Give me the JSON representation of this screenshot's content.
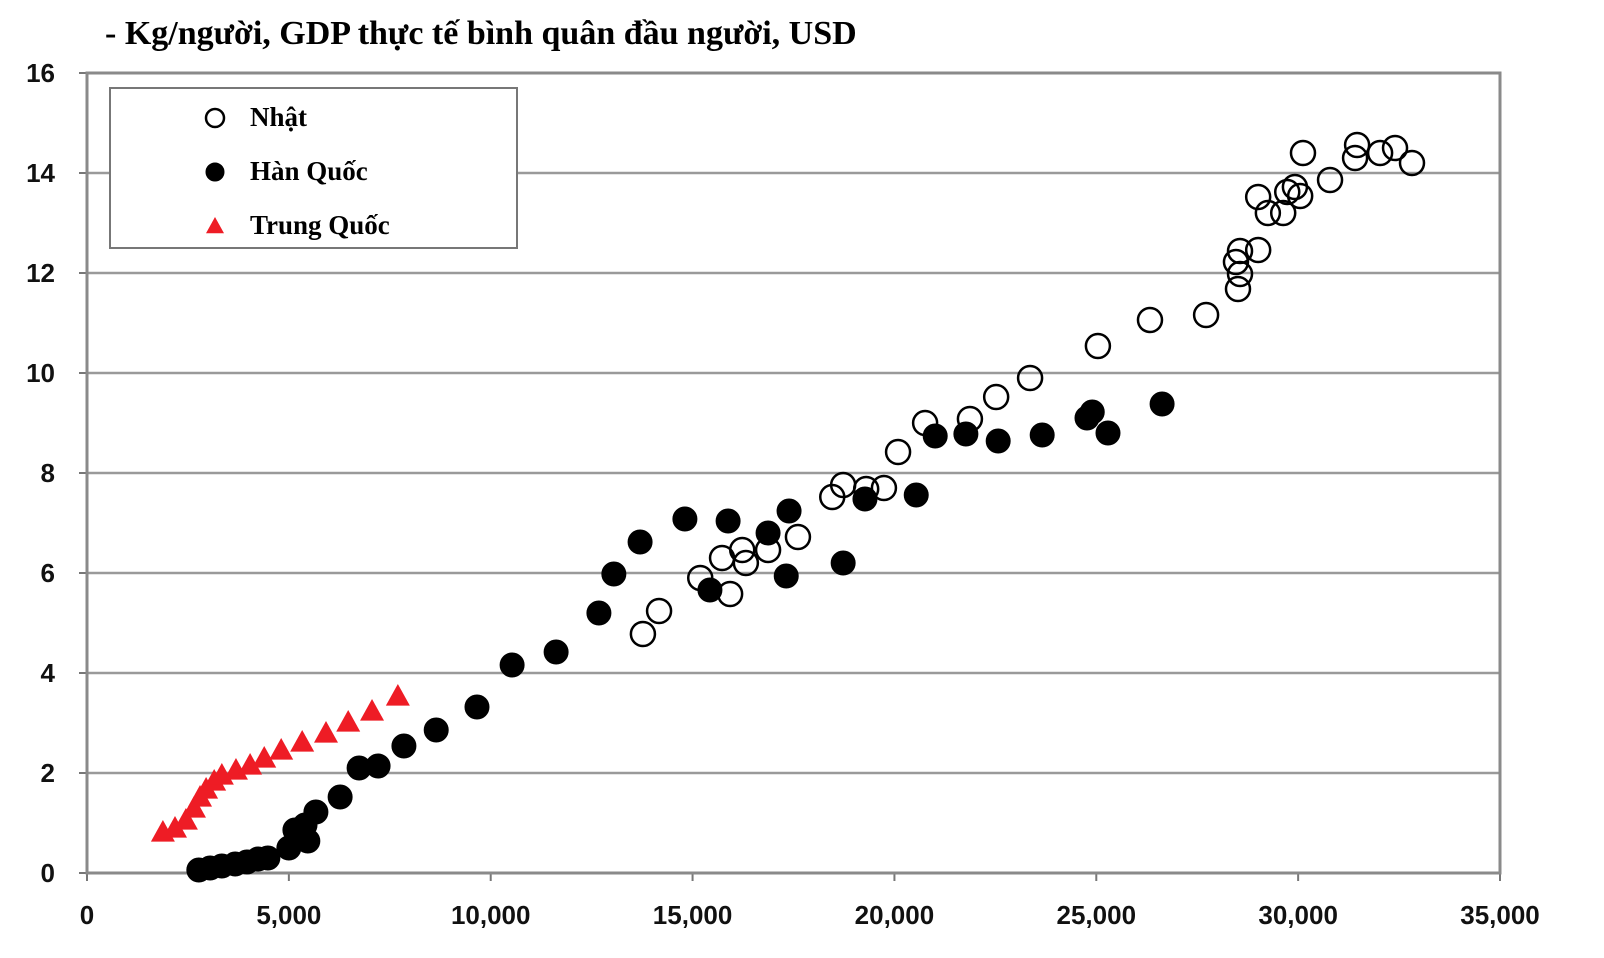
{
  "chart_data": {
    "type": "scatter",
    "title": "- Kg/người, GDP thực tế bình quân đầu người, USD",
    "xlim": [
      0,
      35000
    ],
    "ylim": [
      0,
      16
    ],
    "xticks": [
      0,
      {
        "value": 5000,
        "label": "5,000"
      },
      {
        "value": 10000,
        "label": "10,000"
      },
      {
        "value": 15000,
        "label": "15,000"
      },
      {
        "value": 20000,
        "label": "20,000"
      },
      {
        "value": 25000,
        "label": "25,000"
      },
      {
        "value": 30000,
        "label": "30,000"
      },
      {
        "value": 35000,
        "label": "35,000"
      }
    ],
    "yticks": [
      0,
      2,
      4,
      6,
      8,
      10,
      12,
      14,
      16
    ],
    "grid": true,
    "legend": "upper left",
    "series": [
      {
        "name": "Nhật",
        "color": "#000000",
        "marker": "open-circle",
        "x": [
          13770,
          14170,
          15190,
          15730,
          15930,
          16230,
          16320,
          16870,
          17610,
          18460,
          18730,
          19300,
          19740,
          20090,
          20760,
          21870,
          22520,
          23360,
          25040,
          26330,
          27720,
          28510,
          28560,
          28460,
          28560,
          29010,
          29010,
          29250,
          29630,
          29730,
          29920,
          30050,
          30120,
          30790,
          31410,
          31460,
          32030,
          32400,
          32820
        ],
        "values": [
          4.78,
          5.24,
          5.9,
          6.3,
          5.58,
          6.46,
          6.2,
          6.46,
          6.72,
          7.52,
          7.76,
          7.68,
          7.7,
          8.42,
          9.0,
          9.08,
          9.52,
          9.9,
          10.54,
          11.06,
          11.16,
          11.68,
          11.98,
          12.22,
          12.44,
          12.46,
          13.52,
          13.2,
          13.2,
          13.62,
          13.72,
          13.54,
          14.4,
          13.86,
          14.3,
          14.56,
          14.4,
          14.5,
          14.2
        ]
      },
      {
        "name": "Hàn Quốc",
        "color": "#000000",
        "marker": "filled-circle",
        "x": [
          2770,
          3050,
          3340,
          3670,
          3960,
          4240,
          4480,
          5000,
          5150,
          5400,
          5470,
          5670,
          6270,
          6740,
          7210,
          7850,
          8650,
          9660,
          10530,
          11620,
          12680,
          13050,
          13700,
          14810,
          15430,
          15880,
          16870,
          17320,
          17390,
          18730,
          19270,
          20540,
          21010,
          21770,
          22570,
          23660,
          24770,
          24900,
          25290,
          26630
        ],
        "values": [
          0.06,
          0.1,
          0.14,
          0.18,
          0.22,
          0.28,
          0.3,
          0.5,
          0.86,
          0.96,
          0.64,
          1.22,
          1.52,
          2.1,
          2.14,
          2.54,
          2.86,
          3.32,
          4.16,
          4.42,
          5.2,
          5.98,
          6.62,
          7.08,
          5.66,
          7.04,
          6.8,
          5.94,
          7.24,
          6.2,
          7.48,
          7.56,
          8.74,
          8.78,
          8.64,
          8.76,
          9.1,
          9.22,
          8.8,
          9.38
        ]
      },
      {
        "name": "Trung Quốc",
        "color": "#ee1c25",
        "marker": "triangle",
        "x": [
          1880,
          2180,
          2450,
          2650,
          2800,
          2950,
          3150,
          3340,
          3690,
          4040,
          4390,
          4810,
          5330,
          5920,
          6470,
          7060,
          7700
        ],
        "values": [
          0.82,
          0.9,
          1.06,
          1.3,
          1.52,
          1.68,
          1.84,
          1.96,
          2.06,
          2.16,
          2.3,
          2.46,
          2.62,
          2.8,
          3.02,
          3.24,
          3.54
        ]
      }
    ]
  }
}
